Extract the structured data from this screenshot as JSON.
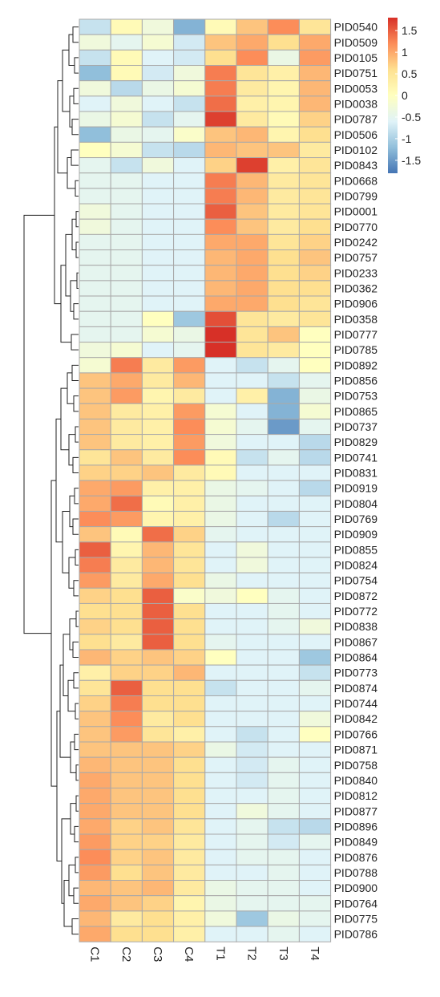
{
  "chart_data": {
    "type": "heatmap",
    "title": "",
    "xlabel": "",
    "ylabel": "",
    "columns": [
      "C1",
      "C2",
      "C3",
      "C4",
      "T1",
      "T2",
      "T3",
      "T4"
    ],
    "rows": [
      "PID0540",
      "PID0509",
      "PID0105",
      "PID0751",
      "PID0053",
      "PID0038",
      "PID0787",
      "PID0506",
      "PID0102",
      "PID0843",
      "PID0668",
      "PID0799",
      "PID0001",
      "PID0770",
      "PID0242",
      "PID0757",
      "PID0233",
      "PID0362",
      "PID0906",
      "PID0358",
      "PID0777",
      "PID0785",
      "PID0892",
      "PID0856",
      "PID0753",
      "PID0865",
      "PID0737",
      "PID0829",
      "PID0741",
      "PID0831",
      "PID0919",
      "PID0804",
      "PID0769",
      "PID0909",
      "PID0855",
      "PID0824",
      "PID0754",
      "PID0872",
      "PID0772",
      "PID0838",
      "PID0867",
      "PID0864",
      "PID0773",
      "PID0874",
      "PID0744",
      "PID0842",
      "PID0766",
      "PID0871",
      "PID0758",
      "PID0840",
      "PID0812",
      "PID0877",
      "PID0896",
      "PID0849",
      "PID0876",
      "PID0788",
      "PID0900",
      "PID0764",
      "PID0775",
      "PID0786"
    ],
    "values": [
      [
        -0.8,
        0.1,
        -0.3,
        -1.3,
        0.1,
        0.8,
        1.2,
        0.5
      ],
      [
        -0.3,
        -0.5,
        -0.2,
        -0.7,
        0.8,
        1.0,
        0.6,
        1.0
      ],
      [
        -0.8,
        0.1,
        -0.6,
        -0.7,
        0.6,
        1.2,
        -0.4,
        1.1
      ],
      [
        -1.2,
        0.1,
        -0.7,
        -0.3,
        1.3,
        0.5,
        0.3,
        0.9
      ],
      [
        -0.3,
        -0.9,
        -0.4,
        -0.2,
        1.3,
        0.4,
        0.2,
        0.9
      ],
      [
        -0.6,
        -0.3,
        -0.6,
        -0.8,
        1.4,
        0.3,
        0.2,
        0.9
      ],
      [
        -0.4,
        -0.2,
        -0.8,
        -0.5,
        1.7,
        0.4,
        0.1,
        0.7
      ],
      [
        -1.2,
        -0.4,
        -0.5,
        -0.1,
        0.8,
        0.9,
        0.2,
        0.6
      ],
      [
        0.0,
        -0.2,
        -0.8,
        -0.9,
        0.9,
        0.8,
        0.8,
        0.4
      ],
      [
        -0.5,
        -0.8,
        -0.3,
        -0.6,
        0.7,
        1.7,
        0.3,
        0.5
      ],
      [
        -0.5,
        -0.5,
        -0.6,
        -0.6,
        1.3,
        0.9,
        0.4,
        0.5
      ],
      [
        -0.5,
        -0.5,
        -0.6,
        -0.6,
        1.3,
        0.9,
        0.4,
        0.5
      ],
      [
        -0.3,
        -0.5,
        -0.6,
        -0.6,
        1.5,
        0.8,
        0.4,
        0.5
      ],
      [
        -0.3,
        -0.5,
        -0.6,
        -0.6,
        1.2,
        0.8,
        0.4,
        0.6
      ],
      [
        -0.5,
        -0.5,
        -0.6,
        -0.6,
        1.0,
        1.0,
        0.5,
        0.7
      ],
      [
        -0.5,
        -0.5,
        -0.6,
        -0.6,
        0.9,
        1.0,
        0.6,
        0.8
      ],
      [
        -0.5,
        -0.5,
        -0.6,
        -0.6,
        0.9,
        1.0,
        0.6,
        0.7
      ],
      [
        -0.5,
        -0.5,
        -0.6,
        -0.6,
        0.9,
        1.0,
        0.6,
        0.6
      ],
      [
        -0.5,
        -0.5,
        -0.6,
        -0.6,
        1.0,
        1.0,
        0.6,
        0.5
      ],
      [
        -0.5,
        -0.5,
        0.0,
        -1.1,
        1.6,
        0.5,
        0.4,
        0.5
      ],
      [
        -0.5,
        -0.5,
        -0.2,
        -0.4,
        1.8,
        0.5,
        0.8,
        0.0
      ],
      [
        -0.3,
        -0.2,
        -0.6,
        -0.5,
        1.8,
        0.5,
        0.4,
        0.0
      ],
      [
        -0.2,
        1.3,
        0.4,
        1.1,
        -0.6,
        -0.8,
        -0.5,
        0.0
      ],
      [
        0.8,
        1.0,
        0.4,
        0.9,
        -0.6,
        -0.6,
        -0.8,
        -0.5
      ],
      [
        0.8,
        1.1,
        0.2,
        0.4,
        -0.6,
        0.3,
        -1.3,
        -0.4
      ],
      [
        0.8,
        0.4,
        0.3,
        1.1,
        -0.2,
        -0.6,
        -1.3,
        -0.2
      ],
      [
        0.8,
        0.4,
        0.3,
        1.2,
        -0.2,
        -0.5,
        -1.5,
        -0.5
      ],
      [
        0.8,
        0.4,
        0.3,
        1.1,
        -0.3,
        -0.6,
        -0.6,
        -0.9
      ],
      [
        0.5,
        0.8,
        0.4,
        1.2,
        0.1,
        -0.8,
        -0.5,
        -0.9
      ],
      [
        0.7,
        0.7,
        0.8,
        0.4,
        0.1,
        -0.6,
        -0.6,
        -0.6
      ],
      [
        1.0,
        1.1,
        0.3,
        0.3,
        -0.4,
        -0.5,
        -0.6,
        -0.9
      ],
      [
        1.0,
        1.4,
        0.1,
        0.3,
        -0.4,
        -0.6,
        -0.6,
        -0.6
      ],
      [
        1.2,
        1.1,
        0.2,
        0.3,
        -0.4,
        -0.6,
        -0.9,
        -0.6
      ],
      [
        0.8,
        0.1,
        1.4,
        0.7,
        -0.5,
        -0.6,
        -0.6,
        -0.6
      ],
      [
        1.5,
        0.2,
        0.9,
        0.5,
        -0.6,
        -0.3,
        -0.6,
        -0.6
      ],
      [
        1.3,
        0.4,
        0.9,
        0.5,
        -0.6,
        -0.3,
        -0.6,
        -0.6
      ],
      [
        1.1,
        0.4,
        1.0,
        0.6,
        -0.4,
        -0.6,
        -0.6,
        -0.6
      ],
      [
        0.7,
        0.6,
        1.5,
        -0.1,
        -0.3,
        0.0,
        -0.5,
        -0.6
      ],
      [
        0.6,
        0.6,
        1.5,
        0.6,
        -0.6,
        -0.6,
        -0.5,
        -0.6
      ],
      [
        0.7,
        0.6,
        1.5,
        0.6,
        -0.6,
        -0.6,
        -0.5,
        -0.3
      ],
      [
        0.6,
        0.4,
        1.5,
        0.6,
        -0.5,
        -0.6,
        -0.6,
        -0.6
      ],
      [
        0.9,
        0.7,
        0.8,
        0.7,
        0.0,
        -0.6,
        -0.6,
        -1.1
      ],
      [
        0.3,
        0.7,
        0.7,
        0.9,
        -0.6,
        -0.6,
        -0.6,
        -0.8
      ],
      [
        0.5,
        1.5,
        0.6,
        0.6,
        -0.8,
        -0.6,
        -0.6,
        -0.5
      ],
      [
        0.7,
        1.3,
        0.6,
        0.6,
        -0.6,
        -0.6,
        -0.6,
        -0.6
      ],
      [
        0.8,
        1.2,
        0.4,
        0.6,
        -0.6,
        -0.6,
        -0.6,
        -0.3
      ],
      [
        0.8,
        1.1,
        0.5,
        0.3,
        -0.6,
        -0.8,
        -0.6,
        0.0
      ],
      [
        0.8,
        0.8,
        0.8,
        0.7,
        -0.4,
        -0.7,
        -0.6,
        -0.6
      ],
      [
        0.9,
        0.8,
        0.8,
        0.6,
        -0.6,
        -0.7,
        -0.5,
        -0.6
      ],
      [
        1.0,
        0.8,
        0.8,
        0.6,
        -0.6,
        -0.7,
        -0.5,
        -0.6
      ],
      [
        1.0,
        0.8,
        0.8,
        0.6,
        -0.6,
        -0.6,
        -0.5,
        -0.6
      ],
      [
        1.0,
        0.8,
        0.8,
        0.6,
        -0.6,
        -0.3,
        -0.5,
        -0.6
      ],
      [
        1.0,
        0.7,
        0.8,
        0.5,
        -0.6,
        -0.5,
        -0.8,
        -0.9
      ],
      [
        1.1,
        0.7,
        0.7,
        0.4,
        -0.6,
        -0.5,
        -0.7,
        -0.5
      ],
      [
        1.2,
        0.7,
        0.8,
        0.4,
        -0.6,
        -0.5,
        -0.5,
        -0.6
      ],
      [
        1.1,
        0.6,
        0.8,
        0.4,
        -0.6,
        -0.6,
        -0.5,
        -0.6
      ],
      [
        0.9,
        0.8,
        0.9,
        0.4,
        -0.4,
        -0.5,
        -0.5,
        -0.6
      ],
      [
        1.0,
        0.8,
        0.7,
        0.2,
        -0.4,
        -0.5,
        -0.5,
        -0.5
      ],
      [
        0.9,
        0.4,
        0.6,
        0.3,
        -0.3,
        -1.1,
        -0.4,
        -0.5
      ],
      [
        1.0,
        0.6,
        0.6,
        0.3,
        -0.6,
        -0.6,
        -0.5,
        -0.6
      ]
    ],
    "colorbar": {
      "ticks": [
        1.5,
        1,
        0.5,
        0,
        -0.5,
        -1,
        -1.5
      ],
      "tick_labels": [
        "1.5",
        "1",
        "0.5",
        "0",
        "-0.5",
        "-1",
        "-1.5"
      ],
      "range": [
        -1.8,
        1.8
      ],
      "colors": [
        "#4575b4",
        "#91bfdb",
        "#e0f3f8",
        "#ffffbf",
        "#fee090",
        "#fc8d59",
        "#d73027"
      ]
    },
    "row_dendrogram": true,
    "cell_border_color": "#a9a9a9"
  }
}
